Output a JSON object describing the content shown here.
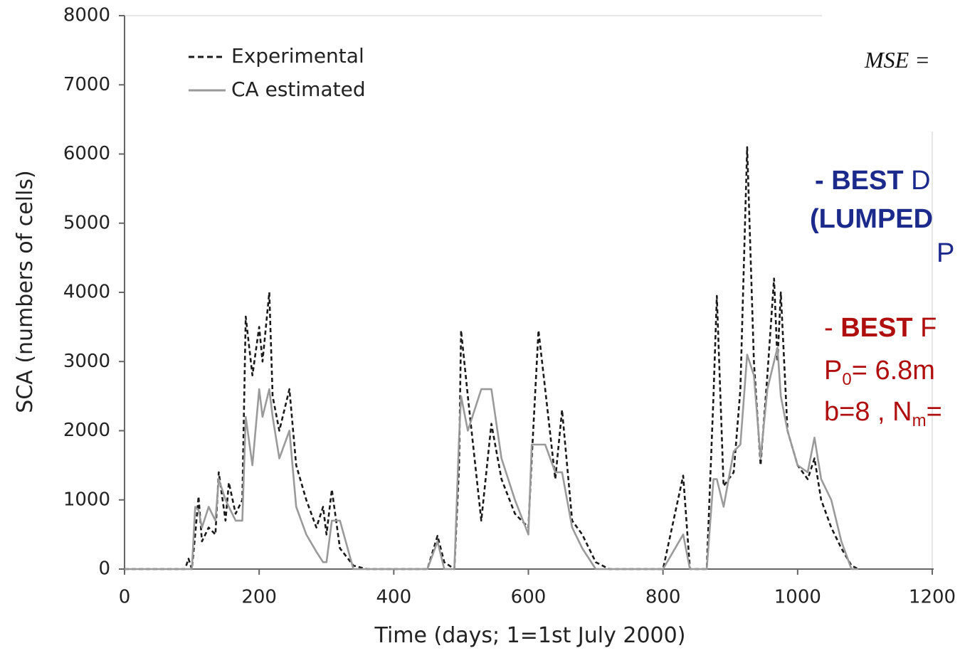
{
  "chart_data": {
    "type": "line",
    "xlabel": "Time (days; 1=1st July 2000)",
    "ylabel": "SCA (numbers of cells)",
    "x": [
      0,
      90,
      95,
      100,
      105,
      110,
      115,
      125,
      135,
      140,
      150,
      155,
      165,
      175,
      180,
      190,
      200,
      205,
      215,
      220,
      230,
      245,
      255,
      270,
      285,
      295,
      300,
      308,
      320,
      340,
      360,
      450,
      465,
      475,
      490,
      497,
      500,
      510,
      530,
      545,
      560,
      580,
      600,
      605,
      615,
      625,
      640,
      650,
      665,
      680,
      700,
      720,
      800,
      830,
      840,
      865,
      875,
      880,
      890,
      905,
      915,
      925,
      935,
      945,
      955,
      965,
      970,
      975,
      985,
      1000,
      1015,
      1025,
      1035,
      1050,
      1065,
      1080,
      1090
    ],
    "series": [
      {
        "name": "Experimental",
        "color": "#1a1a1a",
        "linestyle": "dashed",
        "values": [
          0,
          0,
          150,
          0,
          500,
          1050,
          400,
          600,
          500,
          1400,
          700,
          1250,
          800,
          1000,
          3650,
          2800,
          3500,
          3000,
          4000,
          2500,
          2000,
          2600,
          1500,
          1000,
          600,
          900,
          500,
          1150,
          300,
          50,
          0,
          0,
          480,
          100,
          0,
          1500,
          3450,
          2500,
          700,
          2100,
          1300,
          800,
          600,
          1600,
          3450,
          2600,
          1300,
          2300,
          700,
          500,
          100,
          0,
          0,
          1350,
          0,
          0,
          2500,
          3950,
          1200,
          1400,
          2600,
          6100,
          3000,
          1500,
          2800,
          4200,
          3000,
          4000,
          2000,
          1500,
          1300,
          1600,
          1000,
          600,
          300,
          50,
          0
        ]
      },
      {
        "name": "CA estimated",
        "color": "#9a9a9a",
        "linestyle": "solid",
        "values": [
          0,
          0,
          0,
          0,
          900,
          850,
          600,
          900,
          700,
          1300,
          1000,
          900,
          700,
          700,
          2200,
          1500,
          2600,
          2200,
          2600,
          2200,
          1600,
          2000,
          900,
          500,
          250,
          100,
          100,
          700,
          700,
          0,
          0,
          0,
          400,
          0,
          0,
          1900,
          2500,
          2000,
          2600,
          2600,
          1600,
          1000,
          500,
          1800,
          1800,
          1800,
          1400,
          1400,
          600,
          300,
          0,
          0,
          0,
          500,
          0,
          0,
          1300,
          1300,
          900,
          1700,
          1800,
          3100,
          2800,
          1600,
          2600,
          3000,
          3200,
          2500,
          2000,
          1500,
          1400,
          1900,
          1300,
          1000,
          400,
          0,
          0
        ]
      }
    ],
    "xlim": [
      0,
      1200
    ],
    "xticks": [
      0,
      200,
      400,
      600,
      800,
      1000,
      1200
    ],
    "ylim": [
      0,
      8000
    ],
    "yticks": [
      0,
      1000,
      2000,
      3000,
      4000,
      5000,
      6000,
      7000,
      8000
    ],
    "grid": false,
    "legend": "upper left",
    "annotations": {
      "mse": "MSE =",
      "blue": [
        "- BEST",
        "D",
        "(LUMPED",
        "P"
      ],
      "red": [
        "- ",
        "BEST",
        "F",
        "P",
        "0",
        "= 6.8m",
        "b=8 , N",
        "m",
        "="
      ]
    }
  }
}
